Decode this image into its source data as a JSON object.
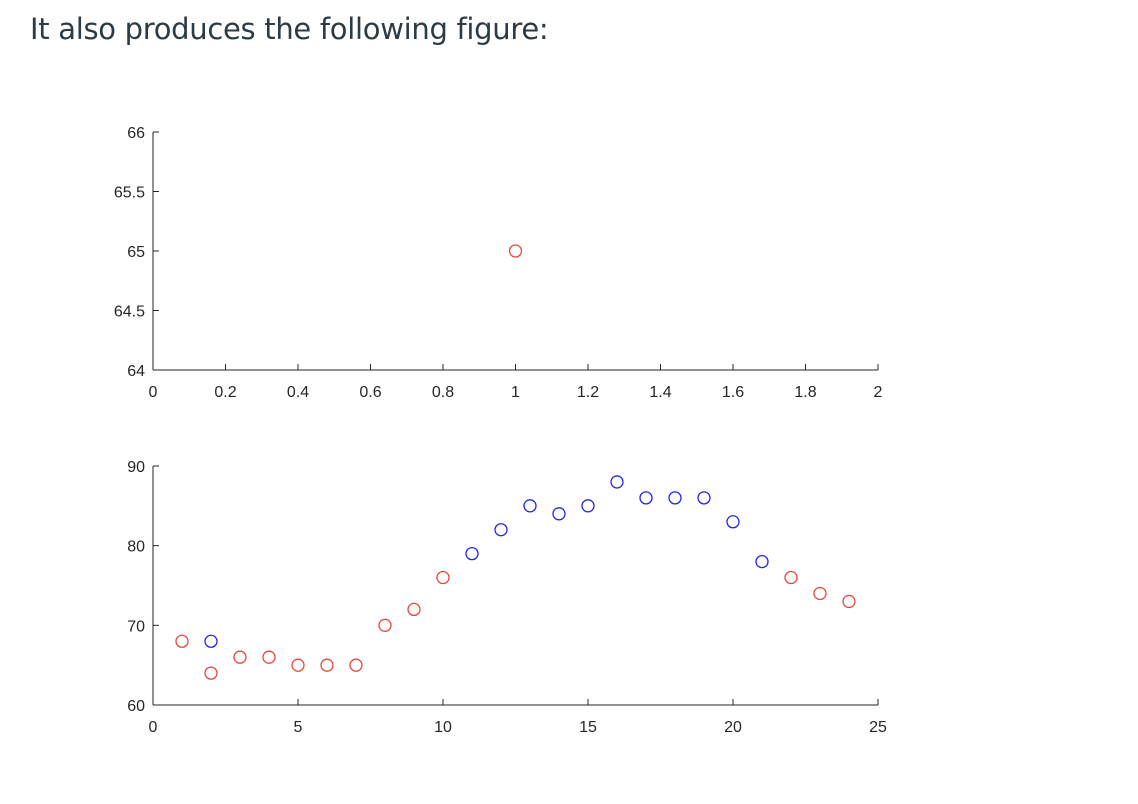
{
  "intro_text": "It also produces the following figure:",
  "colors": {
    "red": "#e8453c",
    "blue": "#2323f0",
    "axis": "#262626"
  },
  "chart_data": [
    {
      "type": "scatter",
      "title": "",
      "xlabel": "",
      "ylabel": "",
      "xlim": [
        0,
        2
      ],
      "ylim": [
        64,
        66
      ],
      "xticks": [
        0,
        0.2,
        0.4,
        0.6,
        0.8,
        1,
        1.2,
        1.4,
        1.6,
        1.8,
        2
      ],
      "xtick_labels": [
        "0",
        "0.2",
        "0.4",
        "0.6",
        "0.8",
        "1",
        "1.2",
        "1.4",
        "1.6",
        "1.8",
        "2"
      ],
      "yticks": [
        64,
        64.5,
        65,
        65.5,
        66
      ],
      "ytick_labels": [
        "64",
        "64.5",
        "65",
        "65.5",
        "66"
      ],
      "grid": false,
      "marker": "circle",
      "points": [
        {
          "x": 1,
          "y": 65,
          "color": "red"
        }
      ]
    },
    {
      "type": "scatter",
      "title": "",
      "xlabel": "",
      "ylabel": "",
      "xlim": [
        0,
        25
      ],
      "ylim": [
        60,
        90
      ],
      "xticks": [
        0,
        5,
        10,
        15,
        20,
        25
      ],
      "xtick_labels": [
        "0",
        "5",
        "10",
        "15",
        "20",
        "25"
      ],
      "yticks": [
        60,
        70,
        80,
        90
      ],
      "ytick_labels": [
        "60",
        "70",
        "80",
        "90"
      ],
      "grid": false,
      "marker": "circle",
      "points": [
        {
          "x": 1,
          "y": 68,
          "color": "red"
        },
        {
          "x": 2,
          "y": 64,
          "color": "red"
        },
        {
          "x": 2,
          "y": 68,
          "color": "blue"
        },
        {
          "x": 3,
          "y": 66,
          "color": "red"
        },
        {
          "x": 4,
          "y": 66,
          "color": "red"
        },
        {
          "x": 5,
          "y": 65,
          "color": "red"
        },
        {
          "x": 6,
          "y": 65,
          "color": "red"
        },
        {
          "x": 7,
          "y": 65,
          "color": "red"
        },
        {
          "x": 8,
          "y": 70,
          "color": "red"
        },
        {
          "x": 9,
          "y": 72,
          "color": "red"
        },
        {
          "x": 10,
          "y": 76,
          "color": "red"
        },
        {
          "x": 11,
          "y": 79,
          "color": "blue"
        },
        {
          "x": 12,
          "y": 82,
          "color": "blue"
        },
        {
          "x": 13,
          "y": 85,
          "color": "blue"
        },
        {
          "x": 14,
          "y": 84,
          "color": "blue"
        },
        {
          "x": 15,
          "y": 85,
          "color": "blue"
        },
        {
          "x": 16,
          "y": 88,
          "color": "blue"
        },
        {
          "x": 17,
          "y": 86,
          "color": "blue"
        },
        {
          "x": 18,
          "y": 86,
          "color": "blue"
        },
        {
          "x": 19,
          "y": 86,
          "color": "blue"
        },
        {
          "x": 20,
          "y": 83,
          "color": "blue"
        },
        {
          "x": 21,
          "y": 78,
          "color": "blue"
        },
        {
          "x": 22,
          "y": 76,
          "color": "red"
        },
        {
          "x": 23,
          "y": 74,
          "color": "red"
        },
        {
          "x": 24,
          "y": 73,
          "color": "red"
        }
      ]
    }
  ]
}
